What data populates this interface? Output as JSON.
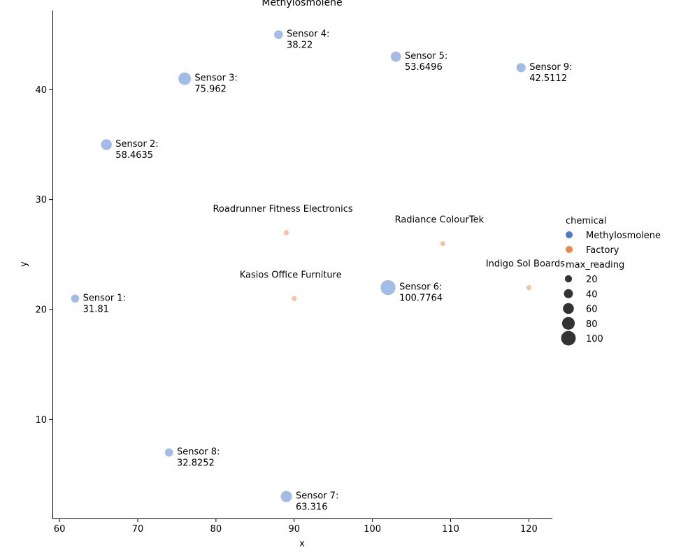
{
  "chart_data": {
    "type": "scatter",
    "title": "Methylosmolene",
    "xlabel": "x",
    "ylabel": "y",
    "xlim": [
      59.1,
      123
    ],
    "ylim": [
      1,
      47.2
    ],
    "xticks": [
      60,
      70,
      80,
      90,
      100,
      110,
      120
    ],
    "yticks": [
      10,
      20,
      30,
      40
    ],
    "grid": false,
    "legend_position": "right",
    "hue_title": "chemical",
    "size_title": "max_reading",
    "series": [
      {
        "name": "Methylosmolene",
        "color": "#4878d0",
        "points": [
          {
            "x": 62,
            "y": 21,
            "size": 31.81,
            "label": "Sensor 1:\n31.81"
          },
          {
            "x": 66,
            "y": 35,
            "size": 58.4635,
            "label": "Sensor 2:\n58.4635"
          },
          {
            "x": 76,
            "y": 41,
            "size": 75.962,
            "label": "Sensor 3:\n75.962"
          },
          {
            "x": 88,
            "y": 45,
            "size": 38.22,
            "label": "Sensor 4:\n38.22"
          },
          {
            "x": 103,
            "y": 43,
            "size": 53.6496,
            "label": "Sensor 5:\n53.6496"
          },
          {
            "x": 102,
            "y": 22,
            "size": 100.7764,
            "label": "Sensor 6:\n100.7764"
          },
          {
            "x": 89,
            "y": 3,
            "size": 63.316,
            "label": "Sensor 7:\n63.316"
          },
          {
            "x": 74,
            "y": 7,
            "size": 32.8252,
            "label": "Sensor 8:\n32.8252"
          },
          {
            "x": 119,
            "y": 42,
            "size": 42.5112,
            "label": "Sensor 9:\n42.5112"
          }
        ]
      },
      {
        "name": "Factory",
        "color": "#ee854a",
        "points": [
          {
            "x": 89,
            "y": 27,
            "size": 0,
            "label": "Roadrunner Fitness Electronics"
          },
          {
            "x": 109,
            "y": 26,
            "size": 0,
            "label": "Radiance ColourTek"
          },
          {
            "x": 120,
            "y": 22,
            "size": 0,
            "label": "Indigo Sol Boards"
          },
          {
            "x": 90,
            "y": 21,
            "size": 0,
            "label": "Kasios Office Furniture"
          }
        ]
      }
    ],
    "size_legend": [
      20,
      40,
      60,
      80,
      100
    ]
  }
}
